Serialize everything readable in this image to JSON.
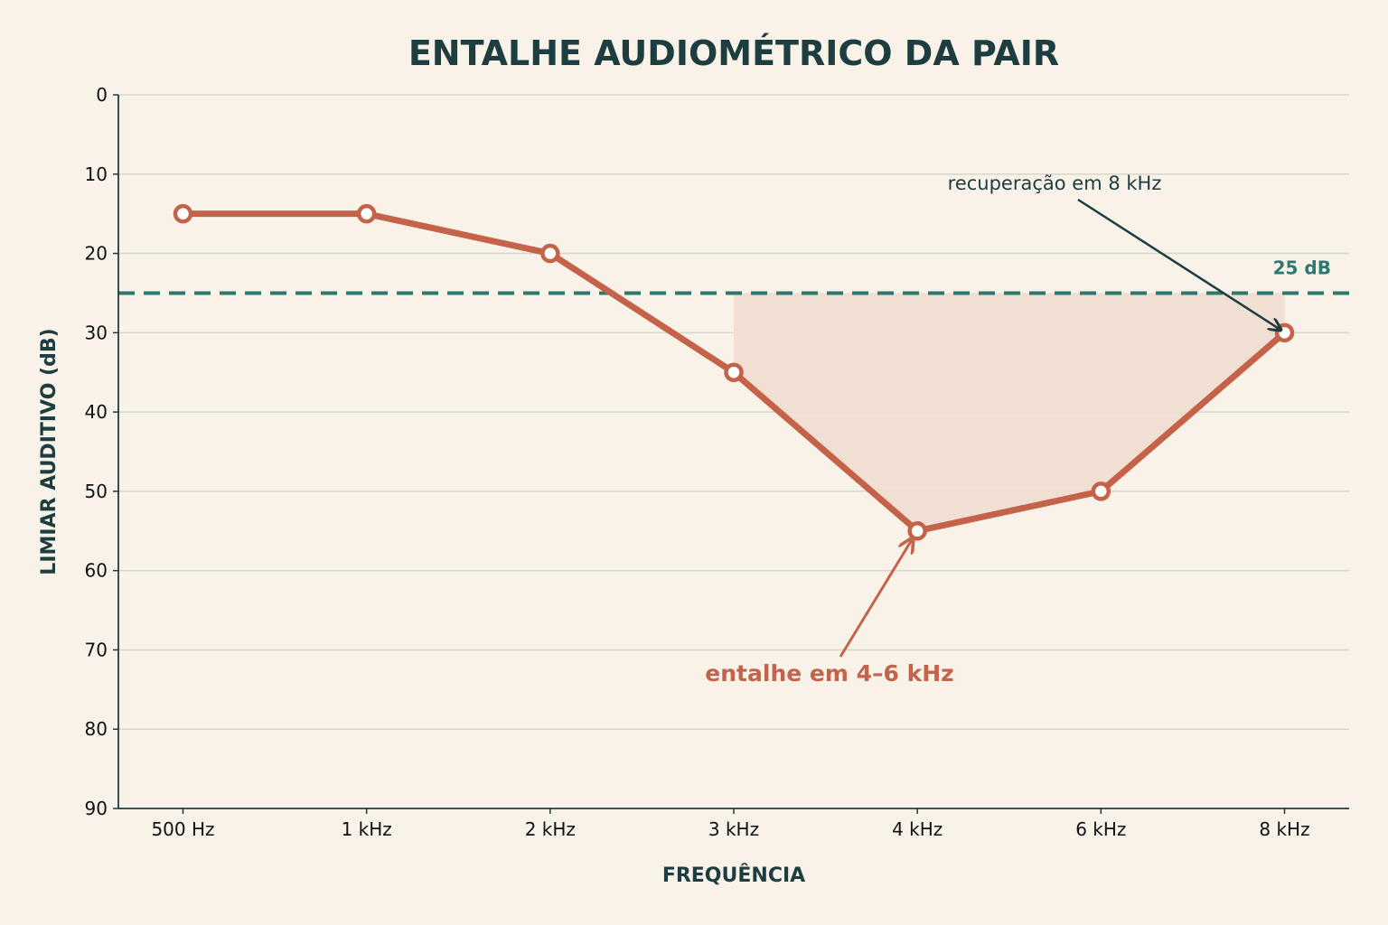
{
  "chart_data": {
    "type": "line",
    "title": "ENTALHE AUDIOMÉTRICO DA PAIR",
    "xlabel": "FREQUÊNCIA",
    "ylabel": "LIMIAR AUDITIVO (dB)",
    "categories": [
      "500 Hz",
      "1 kHz",
      "2 kHz",
      "3 kHz",
      "4 kHz",
      "6 kHz",
      "8 kHz"
    ],
    "series": [
      {
        "values": [
          15,
          15,
          20,
          35,
          55,
          50,
          30
        ]
      }
    ],
    "ylim": [
      0,
      90
    ],
    "y_inverted": true,
    "yticks": [
      0,
      10,
      20,
      30,
      40,
      50,
      60,
      70,
      80,
      90
    ],
    "grid": "horizontal",
    "reference_line": {
      "value": 25,
      "label": "25 dB",
      "style": "dashed"
    },
    "shaded_region": {
      "from_category": "3 kHz",
      "to_category": "8 kHz",
      "upper": 25
    },
    "annotations": [
      {
        "text": "recuperação em 8 kHz",
        "target_category": "8 kHz",
        "target_value": 30
      },
      {
        "text": "entalhe em 4–6 kHz",
        "target_category": "4 kHz",
        "target_value": 55
      }
    ]
  },
  "colors": {
    "background": "#f8f2e8",
    "line": "#c4634a",
    "reference": "#2e7872",
    "text": "#1d3d40",
    "grid": "#d9d6cc",
    "shade": "#f0ddd1"
  }
}
